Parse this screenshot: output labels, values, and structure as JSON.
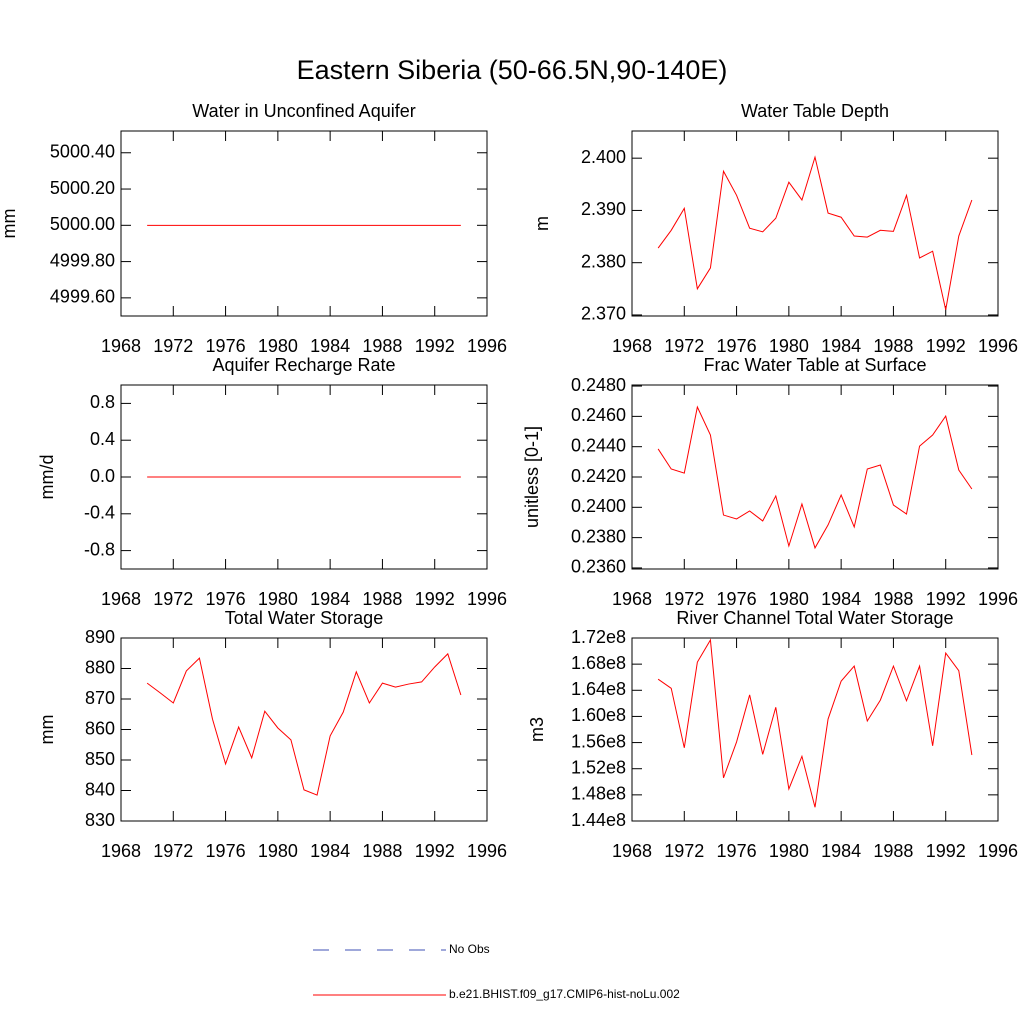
{
  "title": "Eastern Siberia (50-66.5N,90-140E)",
  "legend": [
    {
      "name": "No Obs",
      "color": "#3f51b5",
      "dashed": true
    },
    {
      "name": "b.e21.BHIST.f09_g17.CMIP6-hist-noLu.002",
      "color": "#ff0000",
      "dashed": false
    }
  ],
  "chart_data": [
    {
      "type": "line",
      "title": "Water in Unconfined Aquifer",
      "y_label": "mm",
      "color": "#ff0000",
      "x": [
        1970,
        1971,
        1972,
        1973,
        1974,
        1975,
        1976,
        1977,
        1978,
        1979,
        1980,
        1981,
        1982,
        1983,
        1984,
        1985,
        1986,
        1987,
        1988,
        1989,
        1990,
        1991,
        1992,
        1993,
        1994
      ],
      "values": [
        5000,
        5000,
        5000,
        5000,
        5000,
        5000,
        5000,
        5000,
        5000,
        5000,
        5000,
        5000,
        5000,
        5000,
        5000,
        5000,
        5000,
        5000,
        5000,
        5000,
        5000,
        5000,
        5000,
        5000,
        5000
      ],
      "xlim": [
        1968,
        1996
      ],
      "xticks": [
        1968,
        1972,
        1976,
        1980,
        1984,
        1988,
        1992,
        1996
      ],
      "ylim": [
        4999.5,
        5000.52
      ],
      "yticks": [
        {
          "value": 4999.6,
          "label": "4999.60"
        },
        {
          "value": 4999.8,
          "label": "4999.80"
        },
        {
          "value": 5000,
          "label": "5000.00"
        },
        {
          "value": 5000.2,
          "label": "5000.20"
        },
        {
          "value": 5000.4,
          "label": "5000.40"
        }
      ]
    },
    {
      "type": "line",
      "title": "Water Table Depth",
      "y_label": "m",
      "color": "#ff0000",
      "x": [
        1970,
        1971,
        1972,
        1973,
        1974,
        1975,
        1976,
        1977,
        1978,
        1979,
        1980,
        1981,
        1982,
        1983,
        1984,
        1985,
        1986,
        1987,
        1988,
        1989,
        1990,
        1991,
        1992,
        1993,
        1994
      ],
      "values": [
        2.3828,
        2.3862,
        2.3904,
        2.375,
        2.379,
        2.3975,
        2.3929,
        2.3866,
        2.3859,
        2.3885,
        2.3954,
        2.392,
        2.4002,
        2.3895,
        2.3887,
        2.3851,
        2.3849,
        2.3862,
        2.386,
        2.3929,
        2.3809,
        2.3822,
        2.371,
        2.3851,
        2.392
      ],
      "xlim": [
        1968,
        1996
      ],
      "xticks": [
        1968,
        1972,
        1976,
        1980,
        1984,
        1988,
        1992,
        1996
      ],
      "ylim": [
        2.3698,
        2.4052
      ],
      "yticks": [
        {
          "value": 2.37,
          "label": "2.370"
        },
        {
          "value": 2.38,
          "label": "2.380"
        },
        {
          "value": 2.39,
          "label": "2.390"
        },
        {
          "value": 2.4,
          "label": "2.400"
        }
      ]
    },
    {
      "type": "line",
      "title": "Aquifer Recharge Rate",
      "y_label": "mm/d",
      "color": "#ff0000",
      "x": [
        1970,
        1971,
        1972,
        1973,
        1974,
        1975,
        1976,
        1977,
        1978,
        1979,
        1980,
        1981,
        1982,
        1983,
        1984,
        1985,
        1986,
        1987,
        1988,
        1989,
        1990,
        1991,
        1992,
        1993,
        1994
      ],
      "values": [
        0,
        0,
        0,
        0,
        0,
        0,
        0,
        0,
        0,
        0,
        0,
        0,
        0,
        0,
        0,
        0,
        0,
        0,
        0,
        0,
        0,
        0,
        0,
        0,
        0
      ],
      "xlim": [
        1968,
        1996
      ],
      "xticks": [
        1968,
        1972,
        1976,
        1980,
        1984,
        1988,
        1992,
        1996
      ],
      "ylim": [
        -1,
        1
      ],
      "yticks": [
        -0.8,
        -0.4,
        {
          "value": 0,
          "label": "0.0"
        },
        0.4,
        0.8
      ]
    },
    {
      "type": "line",
      "title": "Frac Water Table at Surface",
      "y_label": "unitless [0-1]",
      "color": "#ff0000",
      "x": [
        1970,
        1971,
        1972,
        1973,
        1974,
        1975,
        1976,
        1977,
        1978,
        1979,
        1980,
        1981,
        1982,
        1983,
        1984,
        1985,
        1986,
        1987,
        1988,
        1989,
        1990,
        1991,
        1992,
        1993,
        1994
      ],
      "values": [
        0.24385,
        0.24253,
        0.24226,
        0.24662,
        0.24477,
        0.23949,
        0.23923,
        0.23976,
        0.2391,
        0.24075,
        0.23745,
        0.24022,
        0.23732,
        0.23884,
        0.24081,
        0.2387,
        0.24253,
        0.24279,
        0.24015,
        0.23956,
        0.24404,
        0.24477,
        0.24602,
        0.24246,
        0.24121
      ],
      "xlim": [
        1968,
        1996
      ],
      "xticks": [
        1968,
        1972,
        1976,
        1980,
        1984,
        1988,
        1992,
        1996
      ],
      "ylim": [
        0.23593,
        0.24807
      ],
      "yticks": [
        {
          "value": 0.236,
          "label": "0.2360"
        },
        {
          "value": 0.238,
          "label": "0.2380"
        },
        {
          "value": 0.24,
          "label": "0.2400"
        },
        {
          "value": 0.242,
          "label": "0.2420"
        },
        {
          "value": 0.244,
          "label": "0.2440"
        },
        {
          "value": 0.246,
          "label": "0.2460"
        },
        {
          "value": 0.248,
          "label": "0.2480"
        }
      ]
    },
    {
      "type": "line",
      "title": "Total Water Storage",
      "y_label": "mm",
      "color": "#ff0000",
      "x": [
        1970,
        1971,
        1972,
        1973,
        1974,
        1975,
        1976,
        1977,
        1978,
        1979,
        1980,
        1981,
        1982,
        1983,
        1984,
        1985,
        1986,
        1987,
        1988,
        1989,
        1990,
        1991,
        1992,
        1993,
        1994
      ],
      "values": [
        875.2,
        872.0,
        868.7,
        879.2,
        883.4,
        863.4,
        848.7,
        860.8,
        850.7,
        866.0,
        860.5,
        856.6,
        840.2,
        838.5,
        857.9,
        865.7,
        878.9,
        868.7,
        875.2,
        873.9,
        874.9,
        875.6,
        880.5,
        884.8,
        871.3
      ],
      "xlim": [
        1968,
        1996
      ],
      "xticks": [
        1968,
        1972,
        1976,
        1980,
        1984,
        1988,
        1992,
        1996
      ],
      "ylim": [
        830,
        890
      ],
      "yticks": [
        830,
        840,
        850,
        860,
        870,
        880,
        890
      ]
    },
    {
      "type": "line",
      "title": "River Channel Total Water Storage",
      "y_label": "m3",
      "color": "#ff0000",
      "x": [
        1970,
        1971,
        1972,
        1973,
        1974,
        1975,
        1976,
        1977,
        1978,
        1979,
        1980,
        1981,
        1982,
        1983,
        1984,
        1985,
        1986,
        1987,
        1988,
        1989,
        1990,
        1991,
        1992,
        1993,
        1994
      ],
      "values": [
        165700000,
        164300000,
        155200000,
        168300000,
        171700000,
        150600000,
        156100000,
        163300000,
        154200000,
        161400000,
        148900000,
        153900000,
        146100000,
        159600000,
        165400000,
        167700000,
        159300000,
        162500000,
        167700000,
        162400000,
        167700000,
        155500000,
        169700000,
        167000000,
        154100000
      ],
      "xlim": [
        1968,
        1996
      ],
      "xticks": [
        1968,
        1972,
        1976,
        1980,
        1984,
        1988,
        1992,
        1996
      ],
      "ylim": [
        144000000,
        172000000
      ],
      "yticks": [
        {
          "value": 144000000,
          "label": "1.44e8"
        },
        {
          "value": 148000000,
          "label": "1.48e8"
        },
        {
          "value": 152000000,
          "label": "1.52e8"
        },
        {
          "value": 156000000,
          "label": "1.56e8"
        },
        {
          "value": 160000000,
          "label": "1.60e8"
        },
        {
          "value": 164000000,
          "label": "1.64e8"
        },
        {
          "value": 168000000,
          "label": "1.68e8"
        },
        {
          "value": 172000000,
          "label": "1.72e8"
        }
      ]
    }
  ]
}
